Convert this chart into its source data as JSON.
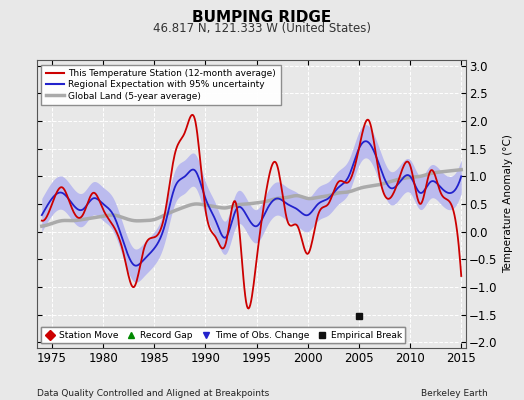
{
  "title": "BUMPING RIDGE",
  "subtitle": "46.817 N, 121.333 W (United States)",
  "ylabel": "Temperature Anomaly (°C)",
  "xlabel_left": "Data Quality Controlled and Aligned at Breakpoints",
  "xlabel_right": "Berkeley Earth",
  "ylim": [
    -2.1,
    3.1
  ],
  "xlim": [
    1973.5,
    2015.5
  ],
  "yticks": [
    -2,
    -1.5,
    -1,
    -0.5,
    0,
    0.5,
    1,
    1.5,
    2,
    2.5,
    3
  ],
  "xticks": [
    1975,
    1980,
    1985,
    1990,
    1995,
    2000,
    2005,
    2010,
    2015
  ],
  "red_color": "#cc0000",
  "blue_color": "#2222cc",
  "blue_band_color": "#bbbbee",
  "gray_color": "#aaaaaa",
  "background_color": "#e8e8e8",
  "grid_color": "#ffffff",
  "empirical_break_year": 2005.0,
  "empirical_break_value": -1.52,
  "legend_items": [
    {
      "label": "This Temperature Station (12-month average)",
      "color": "#cc0000",
      "lw": 1.5
    },
    {
      "label": "Regional Expectation with 95% uncertainty",
      "color": "#2222cc",
      "lw": 1.5
    },
    {
      "label": "Global Land (5-year average)",
      "color": "#aaaaaa",
      "lw": 2.5
    }
  ],
  "marker_legend": [
    {
      "label": "Station Move",
      "marker": "D",
      "color": "#cc0000"
    },
    {
      "label": "Record Gap",
      "marker": "^",
      "color": "#008800"
    },
    {
      "label": "Time of Obs. Change",
      "marker": "v",
      "color": "#2222cc"
    },
    {
      "label": "Empirical Break",
      "marker": "s",
      "color": "#111111"
    }
  ]
}
